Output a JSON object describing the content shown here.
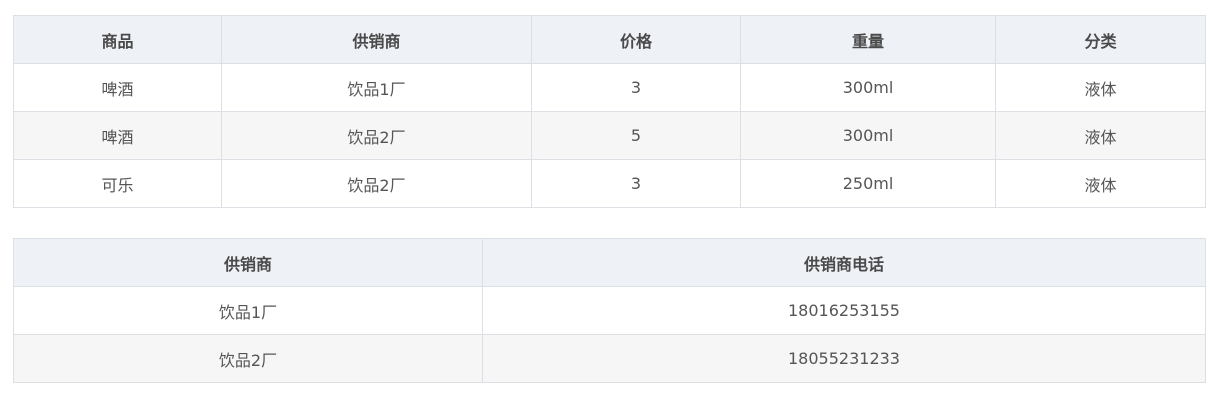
{
  "products_table": {
    "headers": [
      "商品",
      "供销商",
      "价格",
      "重量",
      "分类"
    ],
    "rows": [
      [
        "啤酒",
        "饮品1厂",
        "3",
        "300ml",
        "液体"
      ],
      [
        "啤酒",
        "饮品2厂",
        "5",
        "300ml",
        "液体"
      ],
      [
        "可乐",
        "饮品2厂",
        "3",
        "250ml",
        "液体"
      ]
    ]
  },
  "suppliers_table": {
    "headers": [
      "供销商",
      "供销商电话"
    ],
    "rows": [
      [
        "饮品1厂",
        "18016253155"
      ],
      [
        "饮品2厂",
        "18055231233"
      ]
    ]
  }
}
